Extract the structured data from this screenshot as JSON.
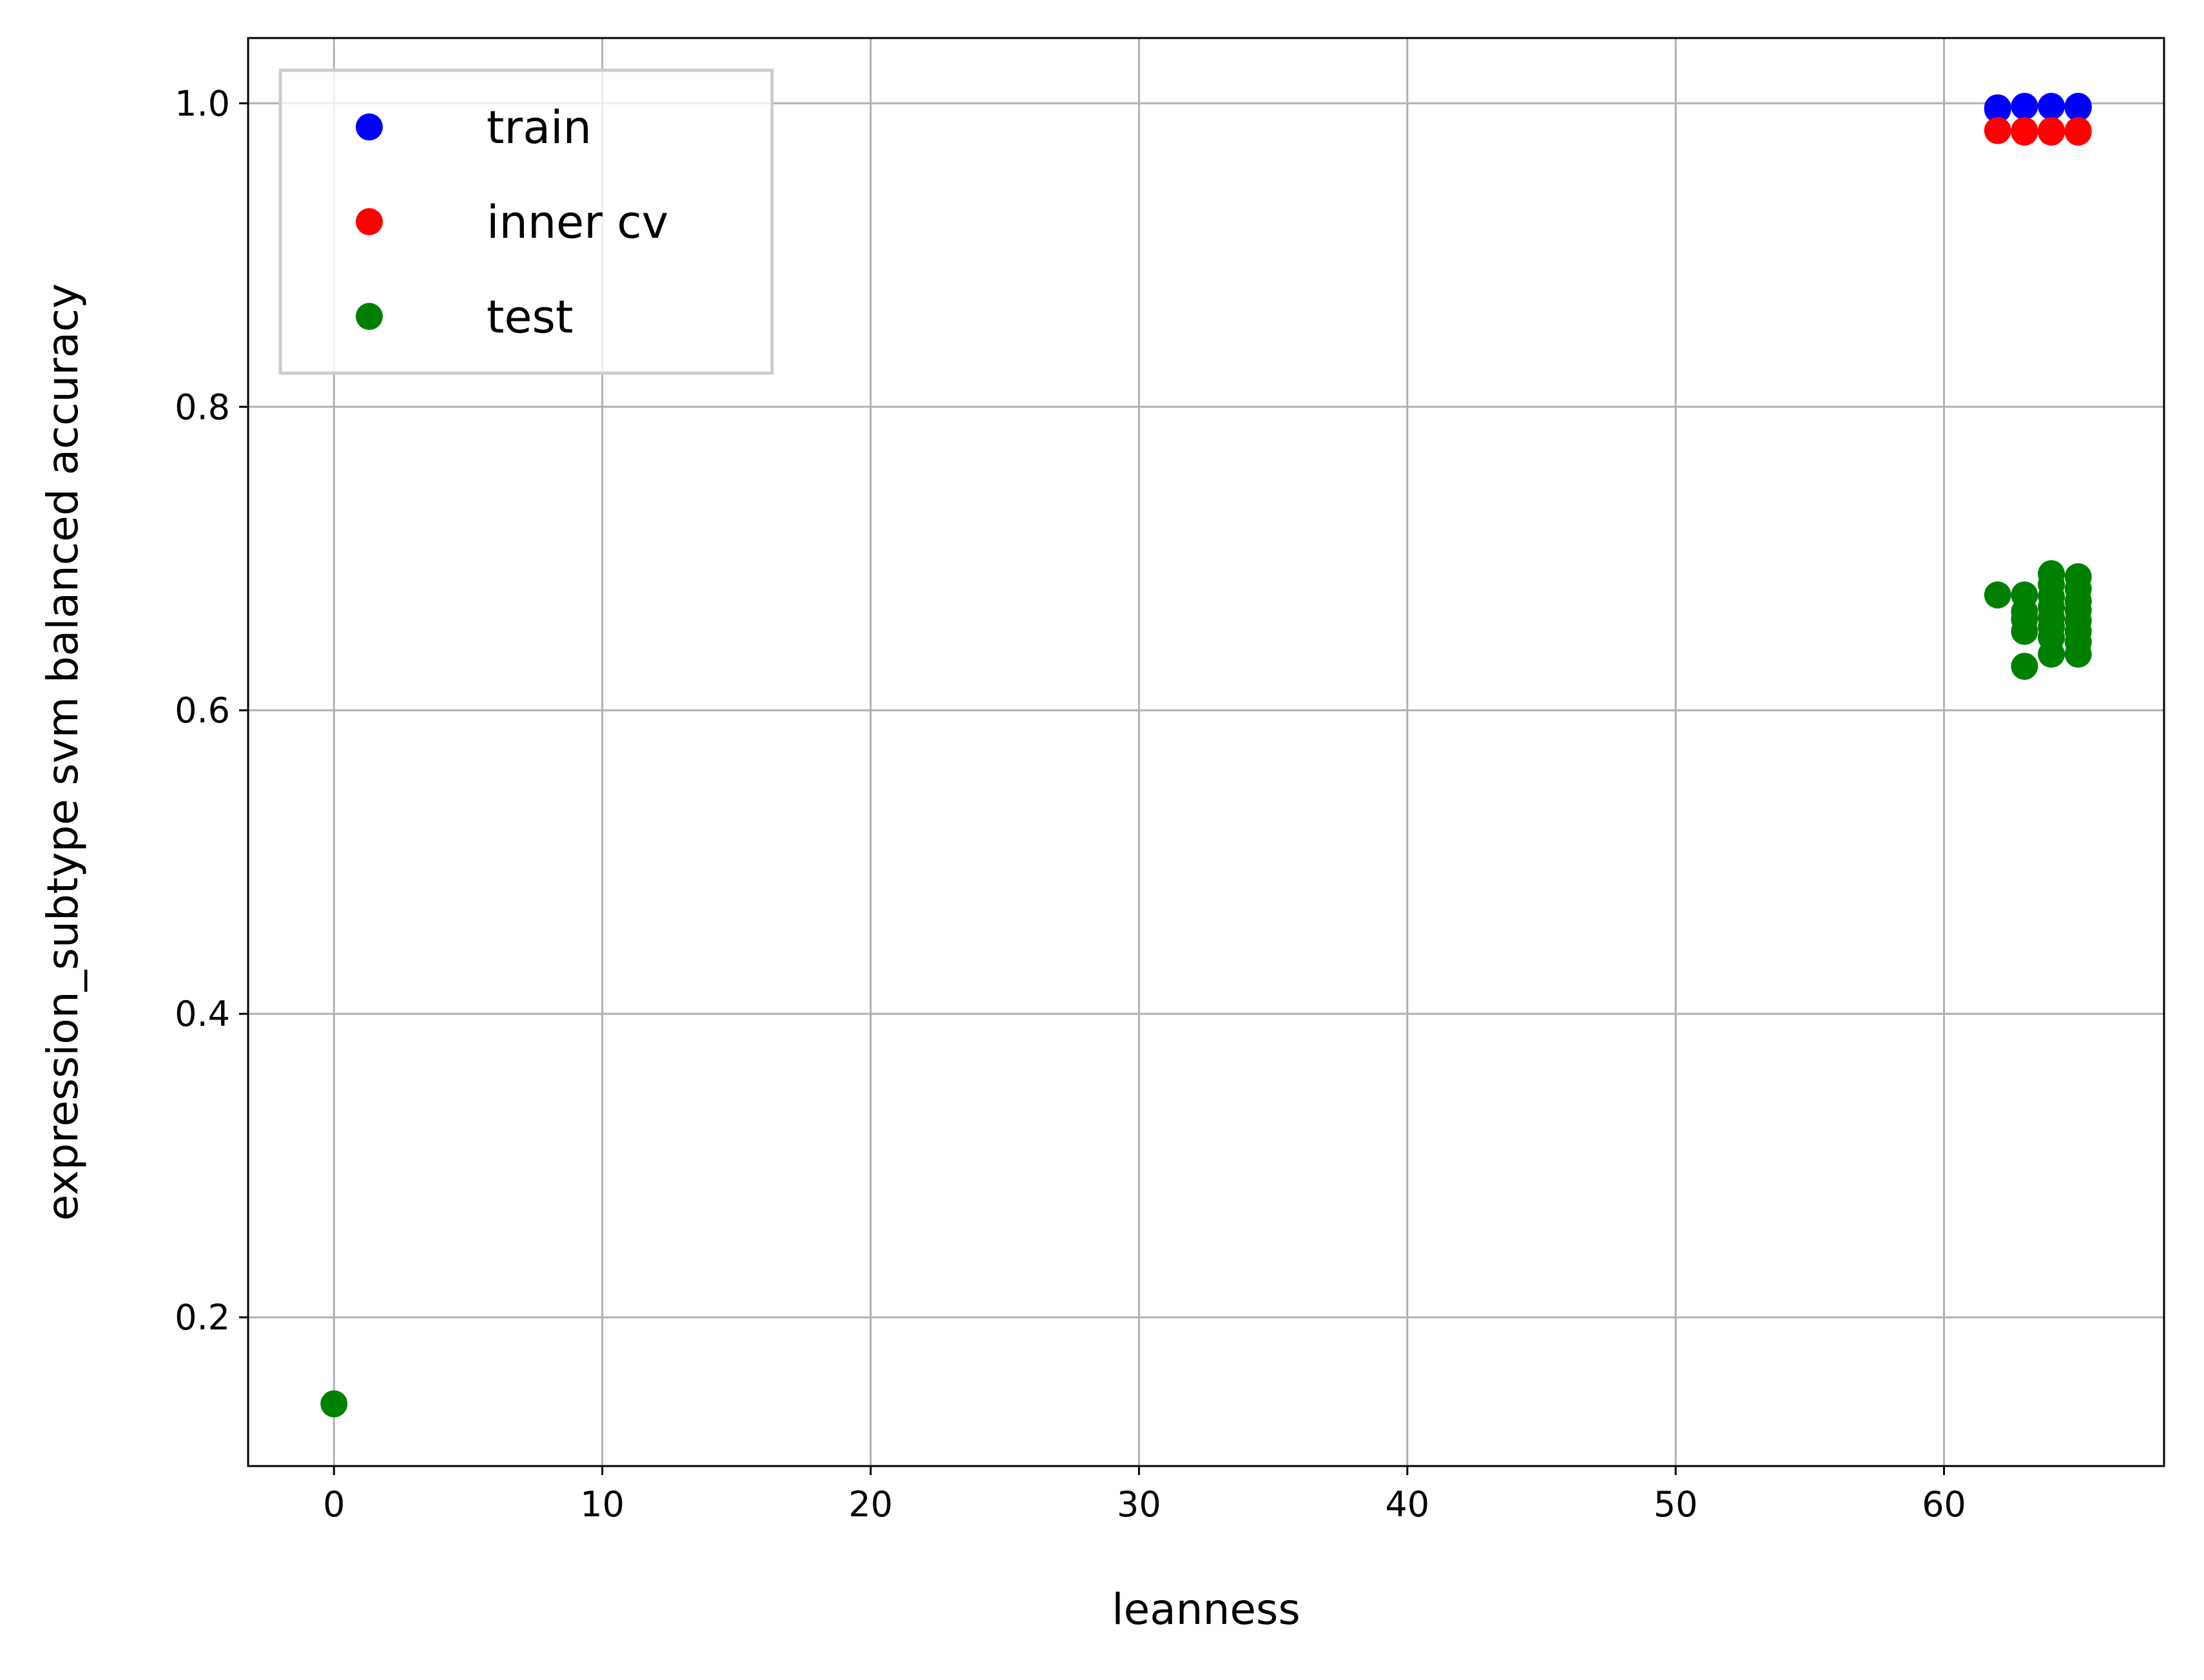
{
  "chart_data": {
    "type": "scatter",
    "title": "",
    "xlabel": "leanness",
    "ylabel": "expression_subtype svm balanced accuracy",
    "xlim": [
      -3.2,
      68.2
    ],
    "ylim": [
      0.102,
      1.043
    ],
    "xticks": [
      0,
      10,
      20,
      30,
      40,
      50,
      60
    ],
    "xtick_labels": [
      "0",
      "10",
      "20",
      "30",
      "40",
      "50",
      "60"
    ],
    "yticks": [
      0.2,
      0.4,
      0.6,
      0.8,
      1.0
    ],
    "ytick_labels": [
      "0.2",
      "0.4",
      "0.6",
      "0.8",
      "1.0"
    ],
    "grid": true,
    "legend_position": "top-left",
    "series": [
      {
        "name": "train",
        "color": "#0000ff",
        "points": [
          {
            "x": 62,
            "y": 0.997
          },
          {
            "x": 63,
            "y": 0.998
          },
          {
            "x": 64,
            "y": 0.998
          },
          {
            "x": 65,
            "y": 0.998
          },
          {
            "x": 62,
            "y": 0.996
          },
          {
            "x": 65,
            "y": 0.997
          }
        ]
      },
      {
        "name": "inner cv",
        "color": "#ff0000",
        "points": [
          {
            "x": 62,
            "y": 0.982
          },
          {
            "x": 63,
            "y": 0.982
          },
          {
            "x": 64,
            "y": 0.982
          },
          {
            "x": 65,
            "y": 0.982
          },
          {
            "x": 63,
            "y": 0.981
          },
          {
            "x": 64,
            "y": 0.981
          },
          {
            "x": 65,
            "y": 0.981
          }
        ]
      },
      {
        "name": "test",
        "color": "#008000",
        "points": [
          {
            "x": 0,
            "y": 0.143
          },
          {
            "x": 62,
            "y": 0.676
          },
          {
            "x": 63,
            "y": 0.676
          },
          {
            "x": 63,
            "y": 0.665
          },
          {
            "x": 63,
            "y": 0.66
          },
          {
            "x": 63,
            "y": 0.652
          },
          {
            "x": 63,
            "y": 0.629
          },
          {
            "x": 64,
            "y": 0.69
          },
          {
            "x": 64,
            "y": 0.683
          },
          {
            "x": 64,
            "y": 0.675
          },
          {
            "x": 64,
            "y": 0.668
          },
          {
            "x": 64,
            "y": 0.661
          },
          {
            "x": 64,
            "y": 0.655
          },
          {
            "x": 64,
            "y": 0.648
          },
          {
            "x": 64,
            "y": 0.637
          },
          {
            "x": 65,
            "y": 0.688
          },
          {
            "x": 65,
            "y": 0.68
          },
          {
            "x": 65,
            "y": 0.672
          },
          {
            "x": 65,
            "y": 0.666
          },
          {
            "x": 65,
            "y": 0.659
          },
          {
            "x": 65,
            "y": 0.652
          },
          {
            "x": 65,
            "y": 0.645
          },
          {
            "x": 65,
            "y": 0.637
          }
        ]
      }
    ]
  }
}
